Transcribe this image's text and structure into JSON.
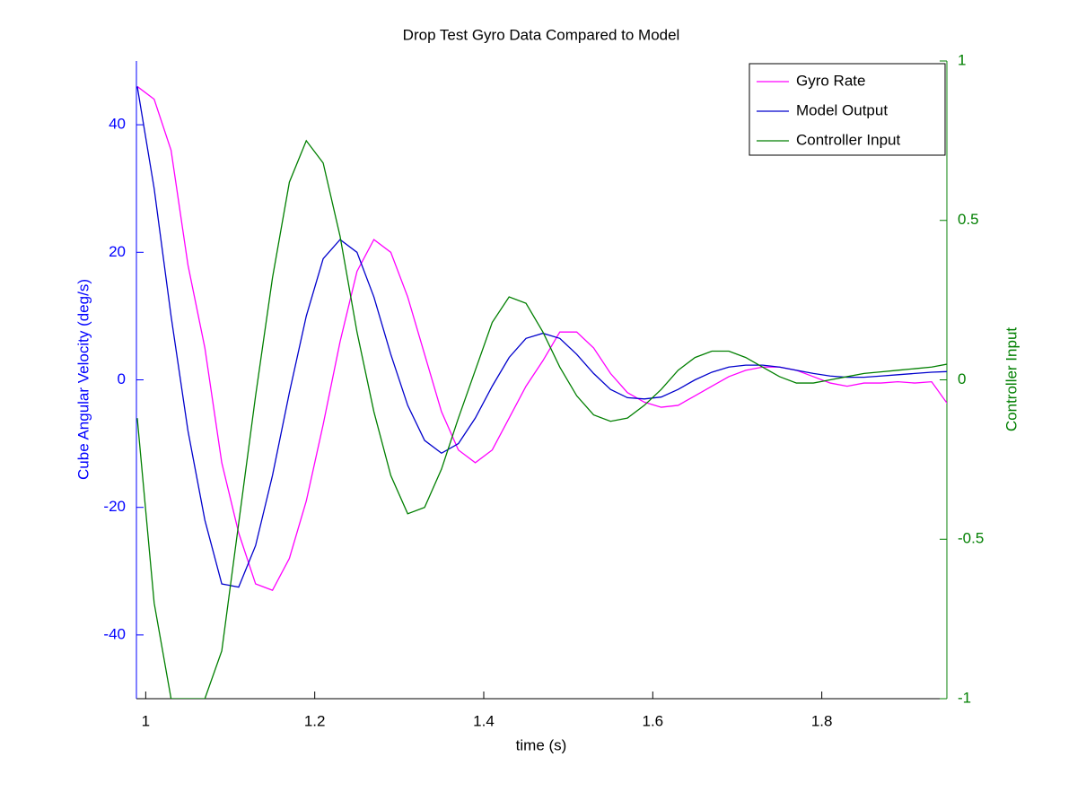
{
  "chart_data": {
    "type": "line",
    "title": "Drop Test Gyro Data Compared to Model",
    "x_label": "time (s)",
    "y_label": "Cube Angular Velocity (deg/s)",
    "y2_label": "Controller Input",
    "x": [
      0.99,
      1.01,
      1.03,
      1.05,
      1.07,
      1.09,
      1.11,
      1.13,
      1.15,
      1.17,
      1.19,
      1.21,
      1.23,
      1.25,
      1.27,
      1.29,
      1.31,
      1.33,
      1.35,
      1.37,
      1.39,
      1.41,
      1.43,
      1.45,
      1.47,
      1.49,
      1.51,
      1.53,
      1.55,
      1.57,
      1.59,
      1.61,
      1.63,
      1.65,
      1.67,
      1.69,
      1.71,
      1.73,
      1.75,
      1.77,
      1.79,
      1.81,
      1.83,
      1.85,
      1.87,
      1.89,
      1.91,
      1.93,
      1.95
    ],
    "series": [
      {
        "name": "Gyro Rate",
        "color": "#ff00ff",
        "axis": "y",
        "values": [
          46,
          44,
          36,
          18,
          5,
          -13,
          -24,
          -32,
          -33,
          -28,
          -19,
          -7,
          6,
          17,
          22,
          20,
          13,
          4,
          -5,
          -11,
          -13,
          -11,
          -6,
          -1,
          3,
          7.5,
          7.5,
          5,
          1,
          -2,
          -3.5,
          -4.3,
          -4,
          -2.5,
          -1,
          0.5,
          1.5,
          2,
          2,
          1.5,
          0.5,
          -0.5,
          -1,
          -0.5,
          -0.5,
          -0.3,
          -0.5,
          -0.3,
          -4
        ]
      },
      {
        "name": "Model Output",
        "color": "#0000cc",
        "axis": "y",
        "values": [
          46,
          30,
          10,
          -8,
          -22,
          -32,
          -32.5,
          -26,
          -15,
          -2,
          10,
          19,
          22,
          20,
          13,
          4,
          -4,
          -9.5,
          -11.5,
          -10,
          -6,
          -1,
          3.5,
          6.5,
          7.3,
          6.5,
          4,
          1,
          -1.5,
          -2.8,
          -3,
          -2.7,
          -1.5,
          0,
          1.2,
          2,
          2.3,
          2.3,
          2,
          1.5,
          1,
          0.6,
          0.4,
          0.4,
          0.6,
          0.8,
          1,
          1.2,
          1.3
        ]
      },
      {
        "name": "Controller Input",
        "color": "#007f00",
        "axis": "y2",
        "values": [
          -0.12,
          -0.7,
          -1,
          -1,
          -1,
          -0.85,
          -0.45,
          -0.05,
          0.32,
          0.62,
          0.75,
          0.68,
          0.45,
          0.15,
          -0.1,
          -0.3,
          -0.42,
          -0.4,
          -0.28,
          -0.12,
          0.03,
          0.18,
          0.26,
          0.24,
          0.15,
          0.04,
          -0.05,
          -0.11,
          -0.13,
          -0.12,
          -0.08,
          -0.03,
          0.03,
          0.07,
          0.09,
          0.09,
          0.07,
          0.04,
          0.01,
          -0.01,
          -0.01,
          0,
          0.01,
          0.02,
          0.025,
          0.03,
          0.035,
          0.04,
          0.05
        ]
      }
    ],
    "xlim": [
      0.989,
      1.948
    ],
    "xticks": [
      1,
      1.2,
      1.4,
      1.6,
      1.8
    ],
    "ylim": [
      -50,
      50
    ],
    "yticks": [
      -40,
      -20,
      0,
      20,
      40
    ],
    "y2lim": [
      -1,
      1
    ],
    "y2ticks": [
      -1,
      -0.5,
      0,
      0.5,
      1
    ],
    "y_color": "#0000ff",
    "y2_color": "#007f00",
    "legend": "upper right"
  }
}
